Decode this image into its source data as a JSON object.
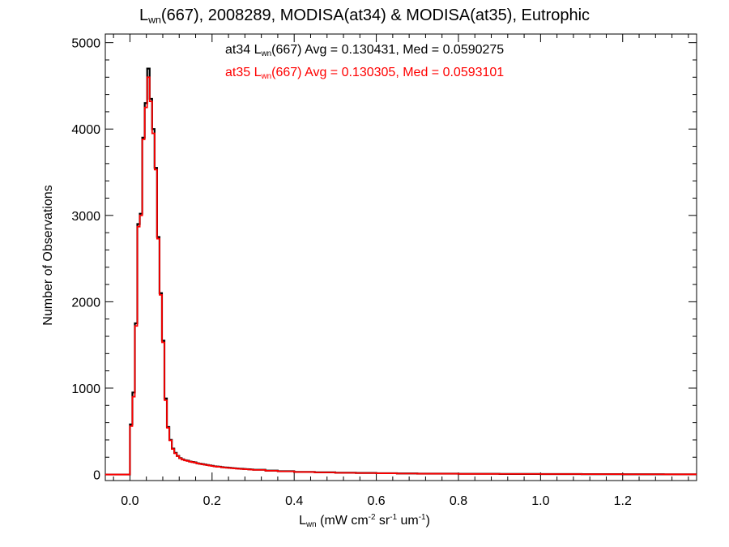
{
  "title": {
    "symbol": "L",
    "symbol_sub": "wn",
    "rest": "(667), 2008289, MODISA(at34) & MODISA(at35), Eutrophic"
  },
  "xlabel": {
    "symbol": "L",
    "symbol_sub": "wn",
    "units_prefix": " (mW cm",
    "exp1": "-2",
    "mid": " sr",
    "exp2": "-1",
    "mid2": " um",
    "exp3": "-1",
    "suffix": ")"
  },
  "ylabel": "Number of Observations",
  "legend": {
    "at34": {
      "prefix": "at34 L",
      "sub": "wn",
      "suffix": "(667) Avg = 0.130431, Med = 0.0590275",
      "color": "#000000"
    },
    "at35": {
      "prefix": "at35 L",
      "sub": "wn",
      "suffix": "(667) Avg = 0.130305, Med = 0.0593101",
      "color": "#ff0000"
    }
  },
  "chart_data": {
    "type": "line",
    "style": "histogram-step",
    "xlim": [
      -0.06,
      1.38
    ],
    "ylim": [
      -70,
      5100
    ],
    "xticks": [
      0.0,
      0.2,
      0.4,
      0.6,
      0.8,
      1.0,
      1.2
    ],
    "xtick_labels": [
      "0.0",
      "0.2",
      "0.4",
      "0.6",
      "0.8",
      "1.0",
      "1.2"
    ],
    "yticks": [
      0,
      1000,
      2000,
      3000,
      4000,
      5000
    ],
    "ytick_labels": [
      "0",
      "1000",
      "2000",
      "3000",
      "4000",
      "5000"
    ],
    "grid": false,
    "legend_position": "top-center",
    "bin_width": 0.006,
    "series": [
      {
        "name": "at34",
        "color": "#000000",
        "x": [
          0.0,
          0.006,
          0.012,
          0.018,
          0.024,
          0.03,
          0.036,
          0.042,
          0.048,
          0.054,
          0.06,
          0.066,
          0.072,
          0.078,
          0.084,
          0.09,
          0.096,
          0.102,
          0.108,
          0.114,
          0.12,
          0.126,
          0.132,
          0.138,
          0.144,
          0.15,
          0.156,
          0.162,
          0.168,
          0.174,
          0.18,
          0.186,
          0.192,
          0.198,
          0.204,
          0.21,
          0.216,
          0.222,
          0.228,
          0.234,
          0.24,
          0.246,
          0.252,
          0.258,
          0.264,
          0.27,
          0.276,
          0.282,
          0.288,
          0.294,
          0.3,
          0.33,
          0.36,
          0.4,
          0.45,
          0.5,
          0.55,
          0.6,
          0.65,
          0.7,
          0.8,
          0.9,
          1.0,
          1.1,
          1.2,
          1.3,
          1.38
        ],
        "values": [
          580,
          950,
          1750,
          2900,
          3020,
          3900,
          4300,
          4700,
          4350,
          4000,
          3550,
          2750,
          2100,
          1550,
          880,
          550,
          400,
          300,
          250,
          215,
          190,
          175,
          165,
          160,
          150,
          145,
          140,
          130,
          125,
          120,
          115,
          110,
          105,
          100,
          95,
          92,
          90,
          85,
          82,
          80,
          78,
          75,
          72,
          70,
          68,
          66,
          64,
          62,
          60,
          58,
          55,
          45,
          38,
          30,
          25,
          20,
          18,
          15,
          12,
          10,
          8,
          6,
          5,
          4,
          3,
          2,
          2
        ]
      },
      {
        "name": "at35",
        "color": "#ff0000",
        "x": [
          0.0,
          0.006,
          0.012,
          0.018,
          0.024,
          0.03,
          0.036,
          0.042,
          0.048,
          0.054,
          0.06,
          0.066,
          0.072,
          0.078,
          0.084,
          0.09,
          0.096,
          0.102,
          0.108,
          0.114,
          0.12,
          0.126,
          0.132,
          0.138,
          0.144,
          0.15,
          0.156,
          0.162,
          0.168,
          0.174,
          0.18,
          0.186,
          0.192,
          0.198,
          0.204,
          0.21,
          0.216,
          0.222,
          0.228,
          0.234,
          0.24,
          0.246,
          0.252,
          0.258,
          0.264,
          0.27,
          0.276,
          0.282,
          0.288,
          0.294,
          0.3,
          0.33,
          0.36,
          0.4,
          0.45,
          0.5,
          0.55,
          0.6,
          0.65,
          0.7,
          0.8,
          0.9,
          1.0,
          1.1,
          1.2,
          1.3,
          1.38
        ],
        "values": [
          560,
          900,
          1720,
          2870,
          3000,
          3880,
          4250,
          4600,
          4320,
          3950,
          3530,
          2730,
          2080,
          1530,
          860,
          540,
          395,
          295,
          245,
          212,
          188,
          172,
          163,
          157,
          148,
          143,
          138,
          128,
          123,
          118,
          113,
          108,
          103,
          98,
          94,
          90,
          88,
          83,
          80,
          78,
          76,
          73,
          70,
          68,
          66,
          64,
          62,
          60,
          58,
          56,
          53,
          44,
          37,
          29,
          24,
          19,
          17,
          14,
          11,
          9,
          7,
          6,
          5,
          4,
          3,
          2,
          2
        ]
      }
    ]
  }
}
